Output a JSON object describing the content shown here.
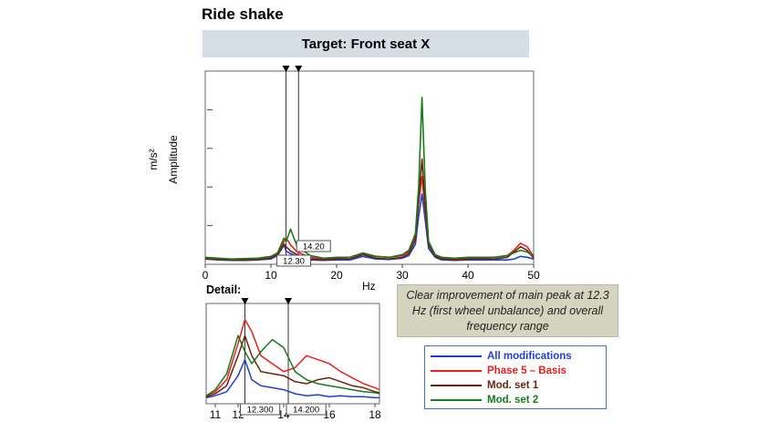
{
  "page": {
    "title": "Ride shake",
    "banner": "Target: Front seat X",
    "note": "Clear improvement of main peak at 12.3 Hz (first wheel unbalance) and overall frequency range"
  },
  "colors": {
    "all_modifications": "#1f3fd6",
    "phase5_basis": "#e8201e",
    "mod_set_1": "#6b2410",
    "mod_set_2": "#1a7a1a",
    "banner_bg": "#d5dee6",
    "note_bg": "#d4d4c0"
  },
  "chart_data": [
    {
      "type": "line",
      "name": "main",
      "ylabel_unit": "m/s²",
      "ylabel": "Amplitude",
      "xlabel": "Hz",
      "xlim": [
        0,
        50
      ],
      "x_ticks": [
        "0",
        "10",
        "20",
        "30",
        "40",
        "50"
      ],
      "markers": [
        12.3,
        14.2
      ],
      "marker_labels": [
        "12.30",
        "14.20"
      ],
      "series": [
        {
          "name": "All modifications",
          "color": "#1f3fd6",
          "x": [
            0,
            2,
            4,
            6,
            8,
            10,
            11,
            12,
            12.3,
            13,
            14,
            16,
            18,
            20,
            22,
            24,
            26,
            28,
            30,
            31,
            32,
            32.5,
            33,
            33.5,
            34,
            35,
            36,
            38,
            40,
            42,
            44,
            46,
            47,
            48,
            49,
            50
          ],
          "y": [
            0.6,
            0.5,
            0.45,
            0.45,
            0.5,
            0.6,
            1.0,
            2.2,
            1.5,
            1.2,
            0.9,
            0.5,
            0.45,
            0.5,
            0.5,
            0.9,
            0.6,
            0.55,
            0.7,
            1.0,
            2.3,
            5.5,
            8.0,
            5.0,
            1.8,
            0.8,
            0.5,
            0.45,
            0.5,
            0.5,
            0.5,
            0.5,
            0.6,
            0.9,
            0.8,
            0.6
          ]
        },
        {
          "name": "Phase 5 – Basis",
          "color": "#e8201e",
          "x": [
            0,
            2,
            4,
            6,
            8,
            10,
            11,
            12,
            12.3,
            13,
            14,
            16,
            18,
            20,
            22,
            24,
            26,
            28,
            30,
            31,
            32,
            32.5,
            33,
            33.5,
            34,
            35,
            36,
            38,
            40,
            42,
            44,
            46,
            47,
            48,
            49,
            50
          ],
          "y": [
            0.7,
            0.6,
            0.55,
            0.6,
            0.65,
            0.8,
            1.3,
            2.6,
            3.0,
            2.2,
            1.4,
            0.8,
            0.6,
            0.7,
            0.8,
            1.2,
            0.9,
            0.8,
            1.0,
            1.4,
            3.2,
            7.0,
            10.0,
            6.0,
            2.6,
            1.0,
            0.7,
            0.6,
            0.7,
            0.7,
            0.8,
            1.0,
            1.6,
            2.4,
            2.0,
            0.9
          ]
        },
        {
          "name": "Mod. set 1",
          "color": "#6b2410",
          "x": [
            0,
            2,
            4,
            6,
            8,
            10,
            11,
            12,
            12.3,
            13,
            14,
            16,
            18,
            20,
            22,
            24,
            26,
            28,
            30,
            31,
            32,
            32.5,
            33,
            33.5,
            34,
            35,
            36,
            38,
            40,
            42,
            44,
            46,
            47,
            48,
            49,
            50
          ],
          "y": [
            0.6,
            0.55,
            0.5,
            0.5,
            0.55,
            0.7,
            1.1,
            2.3,
            2.0,
            1.5,
            1.1,
            0.6,
            0.5,
            0.6,
            0.6,
            1.1,
            0.7,
            0.6,
            0.8,
            1.2,
            2.8,
            7.5,
            12.0,
            6.5,
            2.2,
            0.9,
            0.6,
            0.5,
            0.6,
            0.6,
            0.6,
            0.8,
            1.4,
            2.0,
            1.6,
            0.7
          ]
        },
        {
          "name": "Mod. set 2",
          "color": "#1a7a1a",
          "x": [
            0,
            2,
            4,
            6,
            8,
            10,
            11,
            12,
            12.3,
            13,
            14,
            16,
            18,
            20,
            22,
            24,
            26,
            28,
            30,
            31,
            32,
            32.5,
            33,
            33.5,
            34,
            35,
            36,
            38,
            40,
            42,
            44,
            46,
            47,
            48,
            49,
            50
          ],
          "y": [
            0.8,
            0.7,
            0.6,
            0.65,
            0.7,
            0.9,
            1.3,
            3.0,
            2.6,
            4.0,
            2.0,
            1.0,
            0.7,
            0.8,
            0.8,
            1.3,
            0.9,
            0.8,
            1.1,
            1.6,
            3.5,
            9.0,
            19.0,
            8.5,
            2.6,
            1.1,
            0.8,
            0.7,
            0.8,
            0.8,
            0.8,
            1.0,
            1.3,
            1.6,
            1.4,
            0.9
          ]
        }
      ],
      "legend": [
        "All modifications",
        "Phase 5 – Basis",
        "Mod. set 1",
        "Mod. set 2"
      ]
    },
    {
      "type": "line",
      "name": "detail",
      "title": "Detail:",
      "xlim": [
        10.6,
        18.2
      ],
      "x_ticks": [
        "11",
        "12",
        "14",
        "16",
        "18"
      ],
      "markers": [
        12.3,
        14.2
      ],
      "marker_labels": [
        "12.300",
        "14.200"
      ],
      "series": [
        {
          "name": "All modifications",
          "color": "#1f3fd6",
          "x": [
            10.6,
            11,
            11.5,
            12,
            12.3,
            12.6,
            13,
            13.5,
            14,
            14.5,
            15,
            15.5,
            16,
            16.5,
            17,
            17.5,
            18,
            18.2
          ],
          "y": [
            0.3,
            0.4,
            0.6,
            1.4,
            2.2,
            1.2,
            0.9,
            0.8,
            0.7,
            0.5,
            0.4,
            0.45,
            0.35,
            0.4,
            0.35,
            0.35,
            0.3,
            0.3
          ]
        },
        {
          "name": "Phase 5 – Basis",
          "color": "#e8201e",
          "x": [
            10.6,
            11,
            11.5,
            12,
            12.3,
            12.6,
            13,
            13.5,
            14,
            14.5,
            15,
            15.5,
            16,
            16.5,
            17,
            17.5,
            18,
            18.2
          ],
          "y": [
            0.4,
            0.6,
            1.2,
            3.0,
            4.2,
            3.6,
            2.4,
            2.0,
            1.6,
            1.8,
            2.4,
            2.2,
            2.0,
            1.6,
            1.3,
            1.0,
            0.8,
            0.7
          ]
        },
        {
          "name": "Mod. set 1",
          "color": "#6b2410",
          "x": [
            10.6,
            11,
            11.5,
            12,
            12.3,
            12.6,
            13,
            13.5,
            14,
            14.5,
            15,
            15.5,
            16,
            16.5,
            17,
            17.5,
            18,
            18.2
          ],
          "y": [
            0.35,
            0.5,
            0.9,
            2.4,
            3.4,
            2.4,
            1.6,
            1.5,
            1.4,
            1.1,
            1.0,
            1.2,
            1.3,
            1.1,
            0.9,
            0.8,
            0.6,
            0.55
          ]
        },
        {
          "name": "Mod. set 2",
          "color": "#1a7a1a",
          "x": [
            10.6,
            11,
            11.5,
            12,
            12.3,
            12.6,
            13,
            13.5,
            14,
            14.5,
            15,
            15.5,
            16,
            16.5,
            17,
            17.5,
            18,
            18.2
          ],
          "y": [
            0.4,
            0.7,
            1.5,
            3.4,
            2.6,
            2.0,
            2.6,
            3.2,
            2.8,
            1.6,
            1.2,
            1.0,
            0.9,
            0.8,
            0.7,
            0.6,
            0.55,
            0.5
          ]
        }
      ]
    }
  ]
}
